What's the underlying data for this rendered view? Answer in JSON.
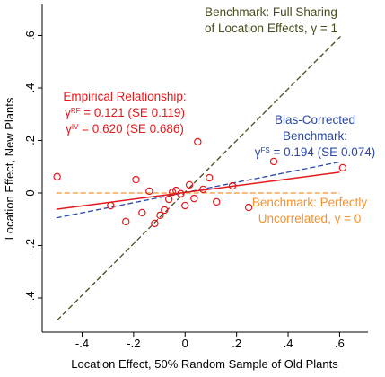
{
  "chart_data": {
    "type": "scatter",
    "x_label": "Location Effect, 50% Random Sample of Old Plants",
    "y_label": "Location Effect, New Plants",
    "xlim": [
      -0.555,
      0.71
    ],
    "ylim": [
      -0.53,
      0.718
    ],
    "xticks": [
      {
        "value": -0.4,
        "label": "-.4"
      },
      {
        "value": -0.2,
        "label": "-.2"
      },
      0,
      {
        "value": 0.2,
        "label": ".2"
      },
      {
        "value": 0.4,
        "label": ".4"
      },
      {
        "value": 0.6,
        "label": ".6"
      }
    ],
    "yticks": [
      {
        "value": -0.4,
        "label": "-.4"
      },
      {
        "value": -0.2,
        "label": "-.2"
      },
      0,
      {
        "value": 0.2,
        "label": ".2"
      },
      {
        "value": 0.4,
        "label": ".4"
      },
      {
        "value": 0.6,
        "label": ".6"
      }
    ],
    "series": [
      {
        "color": "#4b4b1e",
        "dash": true,
        "x": [
          -0.497,
          0.605
        ],
        "values": [
          -0.485,
          0.598
        ]
      },
      {
        "color": "#f5922f",
        "dash": true,
        "x": [
          -0.5,
          0.6
        ],
        "values": [
          0,
          0
        ]
      },
      {
        "color": "#2b48a6",
        "dash": true,
        "x": [
          -0.5,
          0.6
        ],
        "values": [
          -0.095,
          0.118
        ]
      },
      {
        "color": "#e3191c",
        "dash": false,
        "x": [
          -0.5,
          0.6
        ],
        "values": [
          -0.062,
          0.079
        ]
      },
      {
        "color": "#e3191c",
        "marker": "circle",
        "x": [
          -0.497,
          -0.289,
          -0.191,
          -0.167,
          -0.23,
          -0.139,
          -0.118,
          -0.097,
          -0.08,
          -0.063,
          -0.049,
          -0.035,
          -0.017,
          0,
          0.017,
          0.035,
          0.049,
          0.07,
          0.094,
          0.122,
          0.184,
          0.247,
          0.344,
          0.612
        ],
        "values": [
          0.062,
          -0.048,
          0.051,
          -0.075,
          -0.109,
          0.007,
          -0.116,
          -0.085,
          -0.065,
          -0.024,
          0.003,
          0.01,
          -0.003,
          -0.048,
          0.031,
          -0.021,
          0.195,
          0.014,
          0.058,
          -0.034,
          0.027,
          -0.055,
          0.12,
          0.096
        ]
      }
    ],
    "annotations": [
      {
        "color": "#4b4b1e",
        "lines": [
          [
            "Benchmark: Full Sharing"
          ],
          [
            "of Location Effects, γ = 1"
          ]
        ]
      },
      {
        "color": "#e3191c",
        "lines": [
          [
            "Empirical Relationship:"
          ],
          [
            "γ",
            "RF",
            " = 0.121 (SE 0.119)"
          ],
          [
            "γ",
            "IV",
            " = 0.620 (SE 0.686)"
          ]
        ]
      },
      {
        "color": "#2b48a6",
        "lines": [
          [
            "Bias-Corrected"
          ],
          [
            "Benchmark:"
          ],
          [
            "γ",
            "FS",
            " = 0.194 (SE 0.074)"
          ]
        ]
      },
      {
        "color": "#f5922f",
        "lines": [
          [
            "Benchmark: Perfectly"
          ],
          [
            "Uncorrelated, γ = 0"
          ]
        ]
      }
    ]
  }
}
